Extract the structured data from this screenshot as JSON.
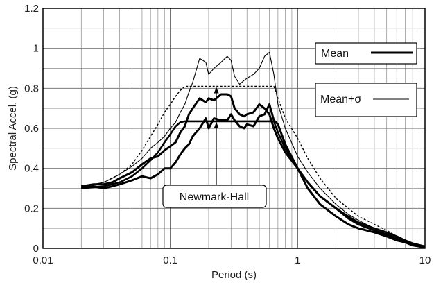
{
  "chart_data": {
    "type": "line",
    "xlabel": "Period (s)",
    "ylabel": "Spectral Accel. (g)",
    "xscale": "log",
    "xlim": [
      0.01,
      10
    ],
    "ylim": [
      0,
      1.2
    ],
    "x_ticks": [
      {
        "value": 0.01,
        "label": "0.01"
      },
      {
        "value": 0.1,
        "label": "0.1"
      },
      {
        "value": 1,
        "label": "1"
      },
      {
        "value": 10,
        "label": "10"
      }
    ],
    "y_ticks": [
      {
        "value": 0,
        "label": "0"
      },
      {
        "value": 0.2,
        "label": "0.2"
      },
      {
        "value": 0.4,
        "label": "0.4"
      },
      {
        "value": 0.6,
        "label": "0.6"
      },
      {
        "value": 0.8,
        "label": "0.8"
      },
      {
        "value": 1,
        "label": "1"
      },
      {
        "value": 1.2,
        "label": "1.2"
      }
    ],
    "grid": "major and minor (log x)",
    "legend": {
      "position": "right",
      "entries": [
        {
          "label": "Mean",
          "line_style": "thick solid"
        },
        {
          "label": "Mean+σ",
          "line_style": "thin solid"
        }
      ]
    },
    "annotation": {
      "text": "Newmark-Hall"
    },
    "series": [
      {
        "style": "thick",
        "x": [
          0.02,
          0.025,
          0.03,
          0.035,
          0.04,
          0.05,
          0.06,
          0.07,
          0.08,
          0.09,
          0.1,
          0.11,
          0.12,
          0.13,
          0.14,
          0.15,
          0.17,
          0.19,
          0.2,
          0.22,
          0.25,
          0.28,
          0.3,
          0.32,
          0.35,
          0.38,
          0.4,
          0.45,
          0.5,
          0.55,
          0.6,
          0.65,
          0.7,
          0.8,
          1.0,
          1.2,
          1.5,
          2.0,
          2.5,
          3.0,
          4.0,
          5.0,
          6.0,
          7.0,
          8.0,
          10.0
        ],
        "values": [
          0.3,
          0.31,
          0.3,
          0.31,
          0.32,
          0.34,
          0.36,
          0.35,
          0.37,
          0.4,
          0.4,
          0.43,
          0.47,
          0.5,
          0.52,
          0.56,
          0.6,
          0.65,
          0.6,
          0.65,
          0.64,
          0.64,
          0.67,
          0.64,
          0.61,
          0.6,
          0.62,
          0.61,
          0.66,
          0.67,
          0.72,
          0.64,
          0.62,
          0.52,
          0.4,
          0.3,
          0.22,
          0.16,
          0.12,
          0.1,
          0.08,
          0.06,
          0.04,
          0.03,
          0.015,
          0.005
        ]
      },
      {
        "style": "thick",
        "x": [
          0.02,
          0.025,
          0.03,
          0.035,
          0.04,
          0.05,
          0.06,
          0.07,
          0.08,
          0.09,
          0.1,
          0.11,
          0.12,
          0.13,
          0.14,
          0.15,
          0.17,
          0.19,
          0.2,
          0.22,
          0.25,
          0.28,
          0.3,
          0.32,
          0.35,
          0.38,
          0.4,
          0.45,
          0.5,
          0.55,
          0.6,
          0.65,
          0.7,
          0.8,
          1.0,
          1.2,
          1.5,
          2.0,
          2.5,
          3.0,
          4.0,
          5.0,
          6.0,
          7.0,
          8.0,
          10.0
        ],
        "values": [
          0.31,
          0.32,
          0.32,
          0.33,
          0.35,
          0.38,
          0.42,
          0.45,
          0.46,
          0.49,
          0.51,
          0.53,
          0.58,
          0.61,
          0.67,
          0.7,
          0.75,
          0.73,
          0.75,
          0.74,
          0.77,
          0.77,
          0.76,
          0.7,
          0.67,
          0.66,
          0.67,
          0.68,
          0.72,
          0.7,
          0.67,
          0.6,
          0.55,
          0.48,
          0.4,
          0.33,
          0.26,
          0.2,
          0.15,
          0.12,
          0.09,
          0.07,
          0.05,
          0.035,
          0.02,
          0.008
        ]
      },
      {
        "style": "thin",
        "x": [
          0.02,
          0.025,
          0.03,
          0.035,
          0.04,
          0.05,
          0.06,
          0.07,
          0.08,
          0.09,
          0.1,
          0.11,
          0.12,
          0.13,
          0.14,
          0.15,
          0.17,
          0.19,
          0.2,
          0.22,
          0.25,
          0.28,
          0.3,
          0.32,
          0.35,
          0.38,
          0.4,
          0.45,
          0.5,
          0.55,
          0.6,
          0.65,
          0.7,
          0.8,
          1.0,
          1.2,
          1.5,
          2.0,
          2.5,
          3.0,
          4.0,
          5.0,
          6.0,
          7.0,
          8.0,
          10.0
        ],
        "values": [
          0.31,
          0.32,
          0.33,
          0.35,
          0.37,
          0.41,
          0.45,
          0.5,
          0.53,
          0.56,
          0.6,
          0.63,
          0.68,
          0.72,
          0.78,
          0.83,
          0.95,
          0.93,
          0.87,
          0.9,
          0.93,
          0.96,
          0.94,
          0.86,
          0.82,
          0.84,
          0.85,
          0.87,
          0.9,
          0.96,
          0.98,
          0.87,
          0.72,
          0.6,
          0.46,
          0.38,
          0.3,
          0.22,
          0.17,
          0.14,
          0.1,
          0.08,
          0.06,
          0.04,
          0.025,
          0.01
        ]
      },
      {
        "style": "dashed",
        "x": [
          0.02,
          0.03,
          0.04,
          0.05,
          0.06,
          0.07,
          0.08,
          0.09,
          0.1,
          0.11,
          0.12,
          0.13,
          0.65,
          0.7,
          0.8,
          1.0,
          1.2,
          1.5,
          2.0,
          2.5,
          3.0,
          4.0,
          5.0,
          6.0,
          7.0,
          8.0,
          10.0
        ],
        "values": [
          0.3,
          0.33,
          0.37,
          0.42,
          0.49,
          0.56,
          0.62,
          0.68,
          0.72,
          0.76,
          0.79,
          0.81,
          0.81,
          0.75,
          0.65,
          0.55,
          0.45,
          0.35,
          0.25,
          0.2,
          0.16,
          0.12,
          0.09,
          0.06,
          0.04,
          0.025,
          0.01
        ]
      },
      {
        "style": "newmark-hall",
        "x": [
          0.02,
          0.03,
          0.04,
          0.05,
          0.06,
          0.07,
          0.08,
          0.09,
          0.1,
          0.11,
          0.12,
          0.13,
          0.65,
          0.7,
          0.8,
          1.0,
          1.2,
          1.5,
          2.0,
          2.5,
          3.0,
          4.0,
          5.0,
          6.0,
          7.0,
          8.0,
          10.0
        ],
        "values": [
          0.3,
          0.31,
          0.33,
          0.36,
          0.4,
          0.44,
          0.48,
          0.53,
          0.57,
          0.61,
          0.63,
          0.635,
          0.635,
          0.58,
          0.5,
          0.4,
          0.33,
          0.26,
          0.2,
          0.16,
          0.13,
          0.1,
          0.08,
          0.06,
          0.04,
          0.025,
          0.01
        ]
      }
    ]
  }
}
